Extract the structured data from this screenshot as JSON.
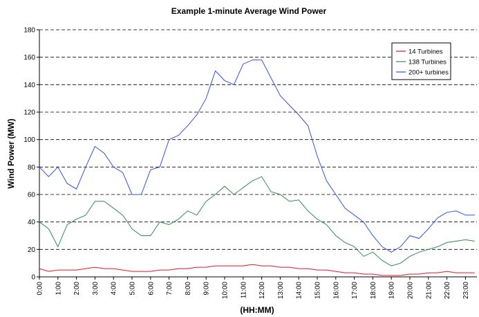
{
  "chart_data": {
    "type": "line",
    "title": "Example 1-minute Average Wind Power",
    "x_label": "(HH:MM)",
    "y_label": "Wind Power (MW)",
    "categories": [
      "0:00",
      null,
      "1:00",
      null,
      "2:00",
      null,
      "3:00",
      null,
      "4:00",
      null,
      "5:00",
      null,
      "6:00",
      null,
      "7:00",
      null,
      "8:00",
      null,
      "9:00",
      null,
      "10:00",
      null,
      "11:00",
      null,
      "12:00",
      null,
      "13:00",
      null,
      "14:00",
      null,
      "15:00",
      null,
      "16:00",
      null,
      "17:00",
      null,
      "18:00",
      null,
      "19:00",
      null,
      "20:00",
      null,
      "21:00",
      null,
      "22:00",
      null,
      "23:00",
      null
    ],
    "series": [
      {
        "name": "14 Turbines",
        "color": "#e8141e",
        "values": [
          6,
          4,
          5,
          5,
          5,
          6,
          7,
          6,
          6,
          5,
          4,
          4,
          4,
          5,
          5,
          6,
          6,
          7,
          7,
          8,
          8,
          8,
          8,
          9,
          8,
          8,
          7,
          7,
          6,
          6,
          5,
          5,
          4,
          3,
          3,
          2,
          2,
          1,
          1,
          1,
          2,
          2,
          3,
          3,
          4,
          3,
          3,
          3
        ]
      },
      {
        "name": "138 Turbines",
        "color": "#2e8b57",
        "values": [
          40,
          35,
          22,
          38,
          42,
          45,
          55,
          55,
          50,
          45,
          35,
          30,
          30,
          40,
          38,
          42,
          48,
          45,
          55,
          60,
          66,
          60,
          65,
          70,
          73,
          62,
          60,
          55,
          56,
          48,
          42,
          38,
          30,
          25,
          22,
          15,
          18,
          12,
          8,
          10,
          15,
          18,
          20,
          22,
          25,
          26,
          27,
          26
        ]
      },
      {
        "name": "200+ turbines",
        "color": "#3050e8",
        "values": [
          80,
          73,
          80,
          68,
          64,
          80,
          95,
          90,
          80,
          76,
          60,
          60,
          78,
          80,
          100,
          103,
          110,
          118,
          130,
          150,
          143,
          140,
          155,
          158,
          158,
          145,
          132,
          125,
          118,
          110,
          88,
          70,
          60,
          50,
          45,
          40,
          30,
          22,
          18,
          22,
          30,
          28,
          35,
          43,
          47,
          48,
          45,
          45
        ]
      }
    ],
    "ylim": [
      0,
      180
    ],
    "yticks": [
      0,
      20,
      40,
      60,
      80,
      100,
      120,
      140,
      160,
      180
    ],
    "grid": true,
    "legend": "top-right"
  }
}
